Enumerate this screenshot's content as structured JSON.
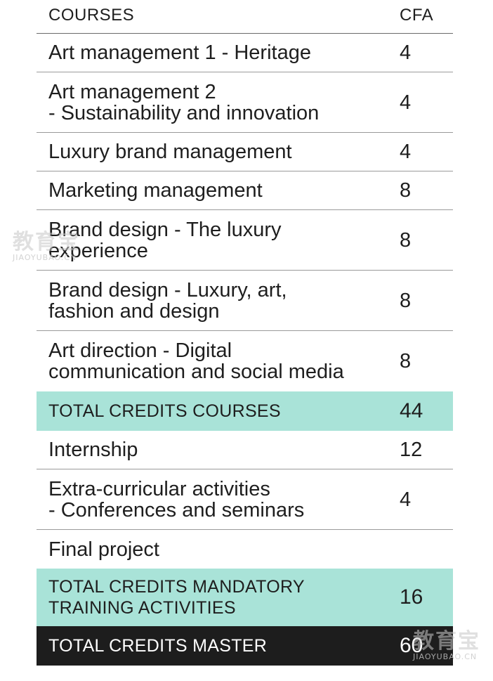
{
  "header": {
    "col1": "COURSES",
    "col2": "CFA"
  },
  "rows": [
    {
      "line1": "Art management 1 - Heritage",
      "line2": "",
      "credits": "4",
      "kind": "course"
    },
    {
      "line1": "Art management 2",
      "line2": "- Sustainability and innovation",
      "credits": "4",
      "kind": "course"
    },
    {
      "line1": "Luxury brand management",
      "line2": "",
      "credits": "4",
      "kind": "course"
    },
    {
      "line1": "Marketing management",
      "line2": "",
      "credits": "8",
      "kind": "course"
    },
    {
      "line1": "Brand design - The luxury",
      "line2": "experience",
      "credits": "8",
      "kind": "course"
    },
    {
      "line1": "Brand design - Luxury, art,",
      "line2": "fashion and design",
      "credits": "8",
      "kind": "course"
    },
    {
      "line1": "Art direction - Digital",
      "line2": "communication and social media",
      "credits": "8",
      "kind": "course"
    },
    {
      "line1": "TOTAL CREDITS COURSES",
      "line2": "",
      "credits": "44",
      "kind": "total"
    },
    {
      "line1": "Internship",
      "line2": "",
      "credits": "12",
      "kind": "course"
    },
    {
      "line1": "Extra-curricular activities",
      "line2": "- Conferences and seminars",
      "credits": "4",
      "kind": "course"
    },
    {
      "line1": "Final project",
      "line2": "",
      "credits": "",
      "kind": "course"
    },
    {
      "line1": "TOTAL CREDITS MANDATORY",
      "line2": "TRAINING ACTIVITIES",
      "credits": "16",
      "kind": "total"
    },
    {
      "line1": "TOTAL CREDITS MASTER",
      "line2": "",
      "credits": "60",
      "kind": "master"
    }
  ],
  "watermarks": [
    {
      "big": "教育宝",
      "small": "JIAOYUBAO.CN"
    },
    {
      "big": "教育宝",
      "small": "JIAOYUBAO.CN"
    }
  ],
  "colors": {
    "total_bg": "#a9e3d8",
    "master_bg": "#1d1d1d",
    "rule": "#9a9a9a"
  }
}
